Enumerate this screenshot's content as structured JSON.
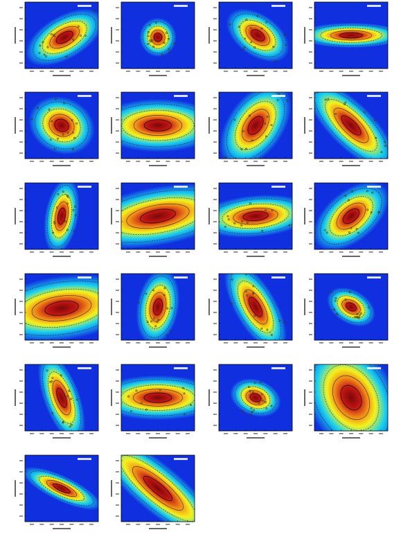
{
  "figure": {
    "panel_count": 22,
    "grid_columns": 4,
    "grid_rows": 6
  },
  "colors": {
    "background_low": "#1030e0",
    "mid": "#19d2ee",
    "mid_high": "#f5f11c",
    "high": "#f08a18",
    "peak": "#c01414",
    "core": "#7a0808",
    "contour_line": "#000000",
    "panel_label": "#ffffff"
  },
  "chart_data": [
    {
      "type": "heatmap",
      "panel": 1,
      "row": 1,
      "col": 1,
      "title": "",
      "xlabel": "",
      "ylabel": "",
      "grid": false,
      "ellipse": {
        "width": 0.56,
        "height": 0.31,
        "angle_deg": -30,
        "center_offset": [
          0.04,
          0.03
        ]
      },
      "scatter_points": true
    },
    {
      "type": "heatmap",
      "panel": 2,
      "row": 1,
      "col": 2,
      "title": "",
      "xlabel": "",
      "ylabel": "",
      "grid": false,
      "ellipse": {
        "width": 0.24,
        "height": 0.28,
        "angle_deg": -10,
        "center_offset": [
          0.0,
          0.03
        ]
      },
      "scatter_points": true
    },
    {
      "type": "heatmap",
      "panel": 3,
      "row": 1,
      "col": 3,
      "title": "",
      "xlabel": "",
      "ylabel": "",
      "grid": false,
      "ellipse": {
        "width": 0.46,
        "height": 0.3,
        "angle_deg": 35,
        "center_offset": [
          0.03,
          0.0
        ]
      },
      "scatter_points": true
    },
    {
      "type": "heatmap",
      "panel": 4,
      "row": 1,
      "col": 4,
      "title": "",
      "xlabel": "",
      "ylabel": "",
      "grid": false,
      "ellipse": {
        "width": 0.7,
        "height": 0.18,
        "angle_deg": 0,
        "center_offset": [
          0.0,
          0.0
        ]
      },
      "scatter_points": false
    },
    {
      "type": "heatmap",
      "panel": 5,
      "row": 2,
      "col": 1,
      "title": "",
      "xlabel": "",
      "ylabel": "",
      "grid": false,
      "ellipse": {
        "width": 0.44,
        "height": 0.4,
        "angle_deg": 25,
        "center_offset": [
          0.0,
          0.0
        ]
      },
      "scatter_points": true
    },
    {
      "type": "heatmap",
      "panel": 6,
      "row": 2,
      "col": 2,
      "title": "",
      "xlabel": "",
      "ylabel": "",
      "grid": false,
      "ellipse": {
        "width": 0.82,
        "height": 0.38,
        "angle_deg": 0,
        "center_offset": [
          0.0,
          0.0
        ]
      },
      "scatter_points": false
    },
    {
      "type": "heatmap",
      "panel": 7,
      "row": 2,
      "col": 3,
      "title": "",
      "xlabel": "",
      "ylabel": "",
      "grid": false,
      "ellipse": {
        "width": 0.62,
        "height": 0.4,
        "angle_deg": -55,
        "center_offset": [
          0.0,
          0.0
        ]
      },
      "scatter_points": true
    },
    {
      "type": "heatmap",
      "panel": 8,
      "row": 2,
      "col": 4,
      "title": "",
      "xlabel": "",
      "ylabel": "",
      "grid": false,
      "ellipse": {
        "width": 0.78,
        "height": 0.32,
        "angle_deg": 45,
        "center_offset": [
          0.0,
          0.0
        ]
      },
      "scatter_points": true
    },
    {
      "type": "heatmap",
      "panel": 9,
      "row": 3,
      "col": 1,
      "title": "",
      "xlabel": "",
      "ylabel": "",
      "grid": false,
      "ellipse": {
        "width": 0.5,
        "height": 0.24,
        "angle_deg": -80,
        "center_offset": [
          0.0,
          0.0
        ]
      },
      "scatter_points": true
    },
    {
      "type": "heatmap",
      "panel": 10,
      "row": 3,
      "col": 2,
      "title": "",
      "xlabel": "",
      "ylabel": "",
      "grid": false,
      "ellipse": {
        "width": 1.08,
        "height": 0.42,
        "angle_deg": -10,
        "center_offset": [
          0.0,
          0.0
        ]
      },
      "scatter_points": false
    },
    {
      "type": "heatmap",
      "panel": 11,
      "row": 3,
      "col": 3,
      "title": "",
      "xlabel": "",
      "ylabel": "",
      "grid": false,
      "ellipse": {
        "width": 0.76,
        "height": 0.3,
        "angle_deg": -5,
        "center_offset": [
          0.0,
          0.0
        ]
      },
      "scatter_points": true
    },
    {
      "type": "heatmap",
      "panel": 12,
      "row": 3,
      "col": 4,
      "title": "",
      "xlabel": "",
      "ylabel": "",
      "grid": false,
      "ellipse": {
        "width": 0.58,
        "height": 0.36,
        "angle_deg": -40,
        "center_offset": [
          0.0,
          0.0
        ]
      },
      "scatter_points": true
    },
    {
      "type": "heatmap",
      "panel": 13,
      "row": 4,
      "col": 1,
      "title": "",
      "xlabel": "",
      "ylabel": "",
      "grid": false,
      "ellipse": {
        "width": 1.02,
        "height": 0.46,
        "angle_deg": -8,
        "center_offset": [
          0.0,
          0.02
        ]
      },
      "scatter_points": false
    },
    {
      "type": "heatmap",
      "panel": 14,
      "row": 4,
      "col": 2,
      "title": "",
      "xlabel": "",
      "ylabel": "",
      "grid": false,
      "ellipse": {
        "width": 0.5,
        "height": 0.3,
        "angle_deg": -80,
        "center_offset": [
          0.0,
          0.0
        ]
      },
      "scatter_points": true
    },
    {
      "type": "heatmap",
      "panel": 15,
      "row": 4,
      "col": 3,
      "title": "",
      "xlabel": "",
      "ylabel": "",
      "grid": false,
      "ellipse": {
        "width": 0.66,
        "height": 0.3,
        "angle_deg": 60,
        "center_offset": [
          0.0,
          0.0
        ]
      },
      "scatter_points": true
    },
    {
      "type": "heatmap",
      "panel": 16,
      "row": 4,
      "col": 4,
      "title": "",
      "xlabel": "",
      "ylabel": "",
      "grid": false,
      "ellipse": {
        "width": 0.34,
        "height": 0.24,
        "angle_deg": 30,
        "center_offset": [
          0.0,
          0.0
        ]
      },
      "scatter_points": true
    },
    {
      "type": "heatmap",
      "panel": 17,
      "row": 5,
      "col": 1,
      "title": "",
      "xlabel": "",
      "ylabel": "",
      "grid": false,
      "ellipse": {
        "width": 0.62,
        "height": 0.26,
        "angle_deg": 70,
        "center_offset": [
          0.0,
          0.0
        ]
      },
      "scatter_points": true
    },
    {
      "type": "heatmap",
      "panel": 18,
      "row": 5,
      "col": 2,
      "title": "",
      "xlabel": "",
      "ylabel": "",
      "grid": false,
      "ellipse": {
        "width": 0.84,
        "height": 0.32,
        "angle_deg": 0,
        "center_offset": [
          0.0,
          0.0
        ]
      },
      "scatter_points": true
    },
    {
      "type": "heatmap",
      "panel": 19,
      "row": 5,
      "col": 3,
      "title": "",
      "xlabel": "",
      "ylabel": "",
      "grid": false,
      "ellipse": {
        "width": 0.34,
        "height": 0.26,
        "angle_deg": 20,
        "center_offset": [
          0.0,
          0.0
        ]
      },
      "scatter_points": true
    },
    {
      "type": "heatmap",
      "panel": 20,
      "row": 5,
      "col": 4,
      "title": "",
      "xlabel": "",
      "ylabel": "",
      "grid": false,
      "ellipse": {
        "width": 0.8,
        "height": 0.62,
        "angle_deg": 60,
        "center_offset": [
          0.0,
          0.0
        ]
      },
      "scatter_points": false
    },
    {
      "type": "heatmap",
      "panel": 21,
      "row": 6,
      "col": 1,
      "title": "",
      "xlabel": "",
      "ylabel": "",
      "grid": false,
      "ellipse": {
        "width": 0.56,
        "height": 0.18,
        "angle_deg": 25,
        "center_offset": [
          0.0,
          0.0
        ]
      },
      "scatter_points": false
    },
    {
      "type": "heatmap",
      "panel": 22,
      "row": 6,
      "col": 2,
      "title": "",
      "xlabel": "",
      "ylabel": "",
      "grid": false,
      "ellipse": {
        "width": 1.1,
        "height": 0.34,
        "angle_deg": 40,
        "center_offset": [
          0.0,
          0.0
        ]
      },
      "scatter_points": false
    }
  ]
}
